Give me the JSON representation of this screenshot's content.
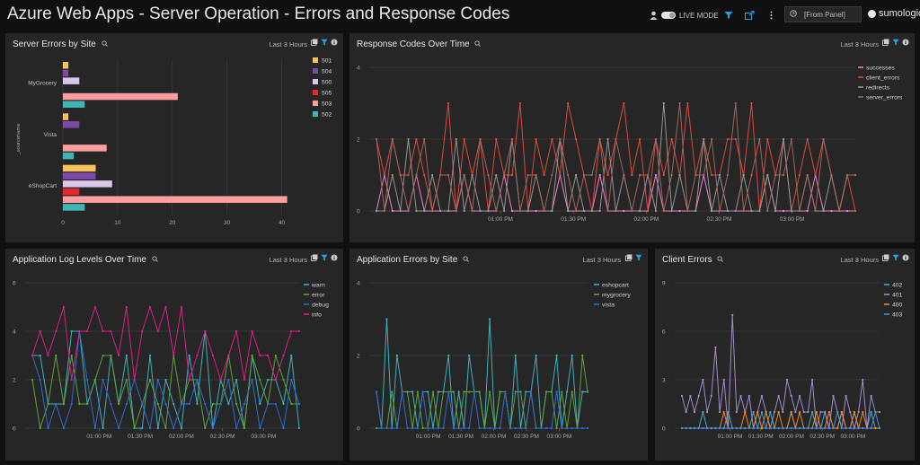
{
  "header": {
    "title": "Azure Web Apps - Server Operation - Errors and Response Codes",
    "live_mode_label": "LIVE MODE",
    "panel_select": "[From Panel]",
    "logo_text": "sumologic"
  },
  "panels": {
    "server_errors": {
      "title": "Server Errors by Site",
      "range": "Last 3 Hours"
    },
    "response_codes": {
      "title": "Response Codes Over Time",
      "range": "Last 3 Hours"
    },
    "app_log_levels": {
      "title": "Application Log Levels Over Time",
      "range": "Last 3 Hours"
    },
    "app_errors": {
      "title": "Application Errors by Site",
      "range": "Last 3 Hours"
    },
    "client_errors": {
      "title": "Client Errors",
      "range": "Last 3 Hours"
    }
  },
  "colors": {
    "accent": "#1aa7e8",
    "panel_bg": "#262626",
    "page_bg": "#101010"
  },
  "chart_data": [
    {
      "id": "server_errors",
      "type": "bar",
      "orientation": "horizontal",
      "ylabel": "_sourcename",
      "categories": [
        "MyGrocery",
        "Vista",
        "eShopCart"
      ],
      "series": [
        {
          "name": "501",
          "color": "#f6c35c",
          "values": [
            1,
            1,
            6
          ]
        },
        {
          "name": "504",
          "color": "#7b4aa8",
          "values": [
            1,
            3,
            6
          ]
        },
        {
          "name": "500",
          "color": "#d9c6e8",
          "values": [
            3,
            0,
            9
          ]
        },
        {
          "name": "505",
          "color": "#e8262b",
          "values": [
            0,
            0,
            3
          ]
        },
        {
          "name": "503",
          "color": "#ff9e9e",
          "values": [
            21,
            8,
            41
          ]
        },
        {
          "name": "502",
          "color": "#3fb6b6",
          "values": [
            4,
            2,
            4
          ]
        }
      ],
      "xticks": [
        "0",
        "10",
        "20",
        "30",
        "40"
      ],
      "xlim": [
        0,
        45
      ],
      "grid": true,
      "legend": "right"
    },
    {
      "id": "response_codes",
      "type": "line",
      "xtick_labels": [
        "01:00 PM",
        "01:30 PM",
        "02:00 PM",
        "02:30 PM",
        "03:00 PM"
      ],
      "yticks": [
        "0",
        "2",
        "4"
      ],
      "ylim": [
        0,
        4
      ],
      "legend": "right",
      "series": [
        {
          "name": "successes",
          "color": "#ff7fd6",
          "values": [
            0,
            1,
            0,
            0,
            0,
            1,
            0,
            0,
            0,
            0,
            0,
            1,
            0,
            0,
            0,
            0,
            1,
            0,
            0,
            0,
            0,
            0,
            0,
            1,
            0,
            0,
            0,
            0,
            1,
            0,
            0,
            0,
            0,
            0,
            0,
            1,
            0,
            0,
            0,
            0,
            0,
            1,
            0,
            0,
            0,
            0,
            0,
            0,
            0,
            1,
            0,
            0,
            0,
            0,
            0,
            1,
            0,
            0,
            0,
            0,
            0
          ]
        },
        {
          "name": "client_errors",
          "color": "#e74c3c",
          "values": [
            2,
            1,
            2,
            1,
            1,
            2,
            1,
            0,
            1,
            3,
            0,
            2,
            1,
            2,
            0,
            2,
            1,
            1,
            3,
            0,
            2,
            1,
            2,
            1,
            3,
            2,
            1,
            0,
            2,
            1,
            2,
            3,
            1,
            2,
            0,
            2,
            1,
            2,
            1,
            3,
            1,
            2,
            1,
            1,
            2,
            2,
            1,
            3,
            0,
            2,
            1,
            2,
            0,
            1,
            2,
            1,
            2,
            1,
            0,
            1,
            0
          ]
        },
        {
          "name": "redirects",
          "color": "#9a9a9a",
          "values": [
            0,
            0,
            1,
            0,
            2,
            0,
            0,
            1,
            0,
            0,
            2,
            0,
            1,
            0,
            0,
            1,
            0,
            2,
            0,
            0,
            1,
            0,
            0,
            2,
            0,
            1,
            0,
            0,
            0,
            2,
            0,
            1,
            0,
            0,
            1,
            0,
            3,
            0,
            1,
            0,
            0,
            2,
            0,
            1,
            0,
            0,
            1,
            0,
            0,
            1,
            0,
            2,
            0,
            0,
            1,
            0,
            0,
            1,
            0,
            1,
            1
          ]
        },
        {
          "name": "server_errors",
          "color": "#a8685c",
          "values": [
            2,
            0,
            2,
            1,
            0,
            1,
            2,
            0,
            1,
            1,
            0,
            1,
            0,
            2,
            1,
            0,
            1,
            2,
            0,
            1,
            1,
            0,
            1,
            2,
            1,
            0,
            1,
            1,
            2,
            0,
            2,
            1,
            0,
            1,
            1,
            2,
            0,
            1,
            3,
            0,
            1,
            1,
            2,
            0,
            1,
            3,
            0,
            1,
            2,
            0,
            1,
            1,
            2,
            0,
            1,
            0,
            2,
            1,
            0,
            1,
            1
          ]
        }
      ]
    },
    {
      "id": "app_log_levels",
      "type": "line",
      "xtick_labels": [
        "01:00 PM",
        "01:30 PM",
        "02:00 PM",
        "02:30 PM",
        "03:00 PM"
      ],
      "yticks": [
        "0",
        "2",
        "4",
        "6"
      ],
      "ylim": [
        0,
        6
      ],
      "legend": "right",
      "series": [
        {
          "name": "warn",
          "color": "#3fb6c8",
          "values": [
            3,
            3,
            1,
            1,
            1,
            4,
            4,
            1,
            2,
            0,
            3,
            1,
            3,
            0,
            0,
            3,
            0,
            2,
            1,
            0,
            3,
            1,
            4,
            0,
            2,
            1,
            2,
            0,
            3,
            1,
            2,
            2,
            1,
            3,
            0
          ]
        },
        {
          "name": "error",
          "color": "#5fa83c",
          "values": [
            2,
            0,
            1,
            3,
            1,
            3,
            1,
            1,
            2,
            3,
            3,
            1,
            2,
            0,
            1,
            2,
            1,
            0,
            3,
            1,
            2,
            2,
            0,
            1,
            1,
            3,
            1,
            0,
            3,
            2,
            1,
            3,
            2,
            1,
            1
          ]
        },
        {
          "name": "debug",
          "color": "#2f6fd6",
          "values": [
            3,
            2,
            0,
            1,
            0,
            1,
            4,
            2,
            0,
            2,
            1,
            0,
            1,
            2,
            1,
            0,
            2,
            1,
            0,
            1,
            1,
            2,
            1,
            0,
            1,
            2,
            0,
            1,
            2,
            0,
            1,
            1,
            0,
            2,
            1
          ]
        },
        {
          "name": "info",
          "color": "#e21f8f",
          "values": [
            3,
            4,
            3,
            4,
            5,
            2,
            4,
            4,
            5,
            4,
            4,
            3,
            5,
            2,
            4,
            5,
            4,
            5,
            3,
            5,
            2,
            3,
            4,
            3,
            2,
            3,
            4,
            2,
            4,
            3,
            3,
            2,
            3,
            4,
            4
          ]
        }
      ]
    },
    {
      "id": "app_errors",
      "type": "line",
      "xtick_labels": [
        "01:00 PM",
        "01:30 PM",
        "02:00 PM",
        "02:30 PM",
        "03:00 PM"
      ],
      "yticks": [
        "0",
        "2",
        "4"
      ],
      "ylim": [
        0,
        4
      ],
      "legend": "right",
      "series": [
        {
          "name": "eshopcart",
          "color": "#3fb6c8",
          "values": [
            1,
            0,
            3,
            0,
            2,
            1,
            1,
            1,
            0,
            1,
            1,
            0,
            1,
            1,
            2,
            0,
            1,
            0,
            2,
            1,
            1,
            0,
            3,
            0,
            1,
            1,
            0,
            2,
            0,
            1,
            1,
            2,
            0,
            1,
            1,
            2,
            0,
            1,
            2,
            0,
            1,
            1
          ]
        },
        {
          "name": "mygrocery",
          "color": "#5fa83c",
          "values": [
            0,
            0,
            0,
            1,
            0,
            1,
            1,
            0,
            1,
            0,
            0,
            1,
            0,
            1,
            1,
            1,
            0,
            1,
            1,
            1,
            1,
            0,
            1,
            0,
            1,
            1,
            0,
            1,
            1,
            0,
            1,
            0,
            0,
            1,
            1,
            0,
            1,
            0,
            1,
            0,
            2,
            1
          ]
        },
        {
          "name": "vista",
          "color": "#2f6fd6",
          "values": [
            1,
            0,
            0,
            0,
            0,
            1,
            0,
            0,
            0,
            1,
            0,
            0,
            0,
            0,
            1,
            0,
            0,
            0,
            0,
            1,
            0,
            0,
            0,
            0,
            0,
            1,
            0,
            0,
            0,
            0,
            1,
            0,
            0,
            0,
            0,
            1,
            0,
            0,
            0,
            0,
            0,
            0
          ]
        }
      ]
    },
    {
      "id": "client_errors",
      "type": "line",
      "xtick_labels": [
        "01:00 PM",
        "01:30 PM",
        "02:00 PM",
        "02:30 PM",
        "03:00 PM"
      ],
      "yticks": [
        "0",
        "3",
        "6",
        "9"
      ],
      "ylim": [
        0,
        9
      ],
      "legend": "right",
      "series": [
        {
          "name": "402",
          "color": "#3fb6c8",
          "values": [
            0,
            0,
            0,
            0,
            0,
            1,
            0,
            0,
            0,
            0,
            0,
            1,
            0,
            0,
            0,
            0,
            0,
            1,
            0,
            0,
            0,
            1,
            0,
            0,
            0,
            0,
            1,
            0,
            0,
            0,
            0,
            1,
            0,
            0,
            1,
            0,
            0,
            0,
            1,
            0,
            0,
            1,
            0,
            0,
            0,
            1,
            0,
            0
          ]
        },
        {
          "name": "401",
          "color": "#a98fd6",
          "values": [
            2,
            1,
            2,
            1,
            2,
            3,
            1,
            2,
            5,
            1,
            3,
            0,
            7,
            1,
            2,
            1,
            2,
            0,
            1,
            2,
            1,
            0,
            1,
            2,
            1,
            3,
            2,
            1,
            2,
            1,
            1,
            3,
            0,
            1,
            1,
            0,
            2,
            1,
            0,
            2,
            1,
            0,
            1,
            3,
            0,
            2,
            1,
            1
          ]
        },
        {
          "name": "400",
          "color": "#ff8c1a",
          "values": [
            0,
            0,
            0,
            0,
            0,
            0,
            0,
            0,
            0,
            0,
            1,
            0,
            0,
            0,
            0,
            1,
            0,
            0,
            1,
            0,
            1,
            0,
            0,
            1,
            0,
            0,
            1,
            0,
            1,
            0,
            0,
            0,
            1,
            0,
            0,
            1,
            0,
            0,
            1,
            0,
            0,
            1,
            0,
            1,
            0,
            0,
            0,
            0
          ]
        },
        {
          "name": "403",
          "color": "#4a8fe8",
          "values": [
            0,
            0,
            0,
            0,
            0,
            0,
            0,
            0,
            0,
            0,
            0,
            0,
            0,
            0,
            0,
            0,
            0,
            0,
            0,
            1,
            0,
            0,
            0,
            0,
            0,
            0,
            0,
            0,
            0,
            0,
            0,
            0,
            0,
            0,
            0,
            0,
            0,
            1,
            0,
            0,
            0,
            0,
            0,
            0,
            0,
            0,
            1,
            0
          ]
        }
      ]
    }
  ]
}
